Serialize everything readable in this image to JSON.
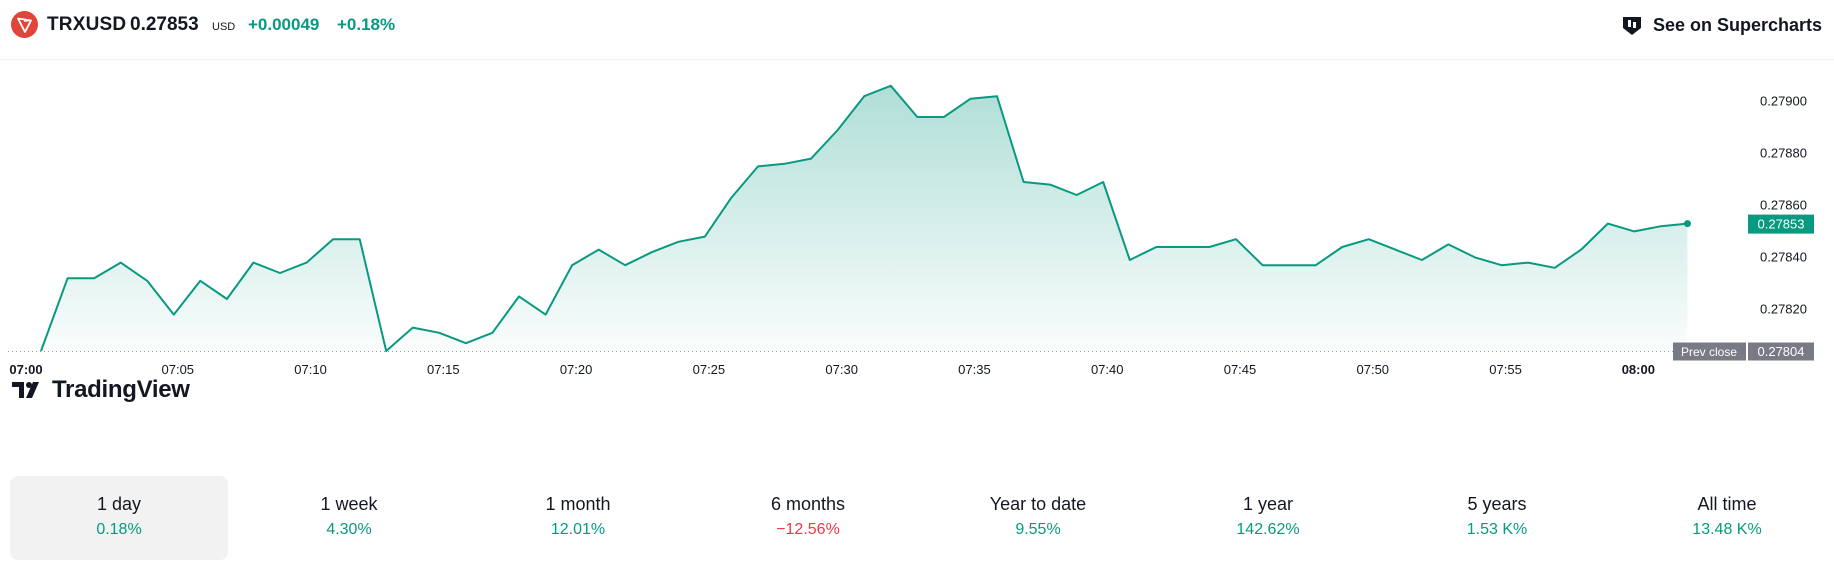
{
  "header": {
    "logo_icon": "tron-logo-icon",
    "symbol": "TRXUSD",
    "price": "0.27853",
    "currency": "USD",
    "change": "+0.00049",
    "change_pct": "+0.18%",
    "superchart_icon": "supercharts-icon",
    "superchart_label": "See on Supercharts"
  },
  "watermark": {
    "text": "TradingView",
    "icon": "tradingview-logo-icon"
  },
  "colors": {
    "line": "#089981",
    "fill": "#089981",
    "up": "#089981",
    "down": "#f23645",
    "prev_close": "#787b86"
  },
  "chart_data": {
    "type": "area",
    "x_start": "07:00",
    "x_step_minutes": 1,
    "xlim": [
      "07:00",
      "08:04"
    ],
    "ylim": [
      0.27804,
      0.2791
    ],
    "x_ticks": [
      "07:00",
      "07:05",
      "07:10",
      "07:15",
      "07:20",
      "07:25",
      "07:30",
      "07:35",
      "07:40",
      "07:45",
      "07:50",
      "07:55",
      "08:00"
    ],
    "x_ticks_bold": [
      "07:00",
      "08:00"
    ],
    "y_ticks": [
      "0.27900",
      "0.27880",
      "0.27860",
      "0.27840",
      "0.27820"
    ],
    "values": [
      0.27804,
      0.27832,
      0.27832,
      0.27838,
      0.27831,
      0.27818,
      0.27831,
      0.27824,
      0.27838,
      0.27834,
      0.27838,
      0.27847,
      0.27847,
      0.27804,
      0.27813,
      0.27811,
      0.27807,
      0.27811,
      0.27825,
      0.27818,
      0.27837,
      0.27843,
      0.27837,
      0.27842,
      0.27846,
      0.27848,
      0.27863,
      0.27875,
      0.27876,
      0.27878,
      0.27889,
      0.27902,
      0.27906,
      0.27894,
      0.27894,
      0.27901,
      0.27902,
      0.27869,
      0.27868,
      0.27864,
      0.27869,
      0.27839,
      0.27844,
      0.27844,
      0.27844,
      0.27847,
      0.27837,
      0.27837,
      0.27837,
      0.27844,
      0.27847,
      0.27843,
      0.27839,
      0.27845,
      0.2784,
      0.27837,
      0.27838,
      0.27836,
      0.27843,
      0.27853,
      0.2785,
      0.27852,
      0.27853
    ],
    "last_value": "0.27853",
    "prev_close": {
      "label": "Prev close",
      "value": "0.27804",
      "numeric": 0.27804
    },
    "grid": false,
    "title": "",
    "xlabel": "",
    "ylabel": ""
  },
  "periods": [
    {
      "label": "1 day",
      "value": "0.18%",
      "trend": "up",
      "active": true
    },
    {
      "label": "1 week",
      "value": "4.30%",
      "trend": "up",
      "active": false
    },
    {
      "label": "1 month",
      "value": "12.01%",
      "trend": "up",
      "active": false
    },
    {
      "label": "6 months",
      "value": "−12.56%",
      "trend": "down",
      "active": false
    },
    {
      "label": "Year to date",
      "value": "9.55%",
      "trend": "up",
      "active": false
    },
    {
      "label": "1 year",
      "value": "142.62%",
      "trend": "up",
      "active": false
    },
    {
      "label": "5 years",
      "value": "1.53 K%",
      "trend": "up",
      "active": false
    },
    {
      "label": "All time",
      "value": "13.48 K%",
      "trend": "up",
      "active": false
    }
  ]
}
